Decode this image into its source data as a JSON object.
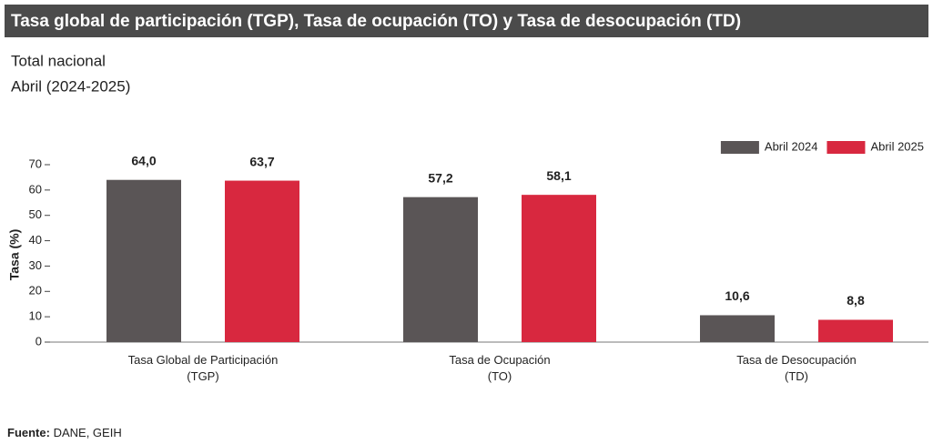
{
  "chart_data": {
    "type": "bar",
    "title": "Tasa global de participación (TGP), Tasa de ocupación (TO) y Tasa de desocupación (TD)",
    "subtitle": [
      "Total nacional",
      "Abril (2024-2025)"
    ],
    "y_label": "Tasa (%)",
    "categories": [
      "Tasa Global de Participación\n(TGP)",
      "Tasa de Ocupación\n(TO)",
      "Tasa de Desocupación\n(TD)"
    ],
    "series": [
      {
        "name": "Abril 2024",
        "color": "#5a5556",
        "values": [
          64.0,
          57.2,
          10.6
        ],
        "value_labels": [
          "64,0",
          "57,2",
          "10,6"
        ]
      },
      {
        "name": "Abril 2025",
        "color": "#d8283f",
        "values": [
          63.7,
          58.1,
          8.8
        ],
        "value_labels": [
          "63,7",
          "58,1",
          "8,8"
        ]
      }
    ],
    "ylim": [
      0,
      70
    ],
    "yticks": [
      0,
      10,
      20,
      30,
      40,
      50,
      60,
      70
    ],
    "legend": "top-right",
    "source_label": "Fuente:",
    "source": "DANE, GEIH"
  }
}
